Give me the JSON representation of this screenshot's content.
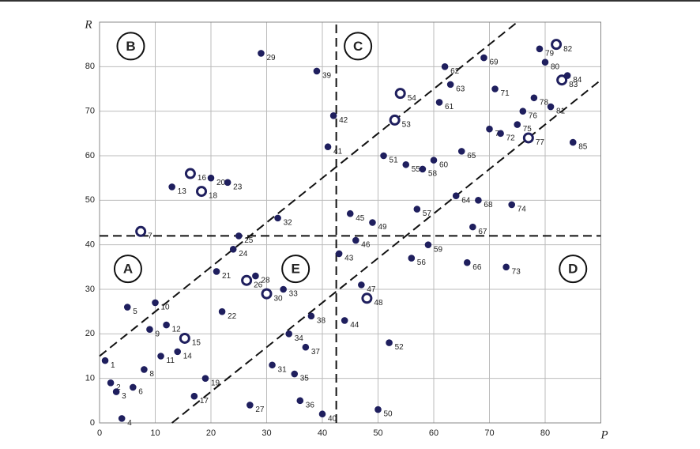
{
  "chart_data": {
    "type": "scatter",
    "x_label": "P",
    "y_label": "R",
    "xlim": [
      0,
      90
    ],
    "ylim": [
      0,
      90
    ],
    "xticks": [
      0,
      10,
      20,
      30,
      40,
      50,
      60,
      70,
      80
    ],
    "yticks": [
      0,
      10,
      20,
      30,
      40,
      50,
      60,
      70,
      80
    ],
    "grid": true,
    "color": "#1f1f5e",
    "point_labels": [
      "1",
      "2",
      "3",
      "4",
      "5",
      "6",
      "7",
      "8",
      "9",
      "10",
      "11",
      "12",
      "13",
      "14",
      "15",
      "16",
      "17",
      "18",
      "19",
      "20",
      "21",
      "22",
      "23",
      "24",
      "25",
      "26",
      "27",
      "28",
      "29",
      "30",
      "31",
      "32",
      "33",
      "34",
      "35",
      "36",
      "37",
      "38",
      "39",
      "40",
      "41",
      "42",
      "43",
      "44",
      "45",
      "46",
      "47",
      "48",
      "49",
      "50",
      "51",
      "52",
      "53",
      "54",
      "55",
      "56",
      "57",
      "58",
      "59",
      "60",
      "61",
      "62",
      "63",
      "64",
      "65",
      "66",
      "67",
      "68",
      "69",
      "70",
      "71",
      "72",
      "73",
      "74",
      "75",
      "76",
      "77",
      "78",
      "79",
      "80",
      "81",
      "82",
      "83",
      "84",
      "85"
    ],
    "x": [
      1,
      2,
      3,
      4,
      5,
      6,
      7.4,
      8,
      9,
      10,
      11,
      12,
      13,
      14,
      15.3,
      16.3,
      17,
      18.3,
      19,
      20,
      21,
      22,
      23,
      24,
      25,
      26.4,
      27,
      28,
      29,
      30,
      31,
      32,
      33,
      34,
      35,
      36,
      37,
      38,
      39,
      40,
      41,
      42,
      43,
      44,
      45,
      46,
      47,
      48,
      49,
      50,
      51,
      52,
      53,
      54,
      55,
      56,
      57,
      58,
      59,
      60,
      61,
      62,
      63,
      64,
      65,
      66,
      67,
      68,
      69,
      70,
      71,
      72,
      73,
      74,
      75,
      76,
      77,
      78,
      79,
      80,
      81,
      82,
      83,
      84,
      85
    ],
    "y": [
      14,
      9,
      7,
      1,
      26,
      8,
      43,
      12,
      21,
      27,
      15,
      22,
      53,
      16,
      19,
      56,
      6,
      52,
      10,
      55,
      34,
      25,
      54,
      39,
      42,
      32,
      4,
      33,
      83,
      29,
      13,
      46,
      30,
      20,
      11,
      5,
      17,
      24,
      79,
      2,
      62,
      69,
      38,
      23,
      47,
      41,
      31,
      28,
      45,
      3,
      60,
      18,
      68,
      74,
      58,
      37,
      48,
      57,
      40,
      59,
      72,
      80,
      76,
      51,
      61,
      36,
      44,
      50,
      82,
      66,
      75,
      65,
      35,
      49,
      67,
      70,
      64,
      73,
      84,
      81,
      71,
      85,
      77,
      78,
      63
    ],
    "hollow": [
      false,
      false,
      false,
      false,
      false,
      false,
      true,
      false,
      false,
      false,
      false,
      false,
      false,
      false,
      true,
      true,
      false,
      true,
      false,
      false,
      false,
      false,
      false,
      false,
      false,
      true,
      false,
      false,
      false,
      true,
      false,
      false,
      false,
      false,
      false,
      false,
      false,
      false,
      false,
      false,
      false,
      false,
      false,
      false,
      false,
      false,
      false,
      true,
      false,
      false,
      false,
      false,
      true,
      true,
      false,
      false,
      false,
      false,
      false,
      false,
      false,
      false,
      false,
      false,
      false,
      false,
      false,
      false,
      false,
      false,
      false,
      false,
      false,
      false,
      false,
      false,
      true,
      false,
      false,
      false,
      false,
      true,
      true,
      false,
      false
    ],
    "lines": [
      {
        "from": [
          42.5,
          0
        ],
        "to": [
          42.5,
          90
        ]
      },
      {
        "from": [
          0,
          42
        ],
        "to": [
          90,
          42
        ]
      },
      {
        "from": [
          0,
          15
        ],
        "to": [
          75,
          90
        ]
      },
      {
        "from": [
          13,
          0
        ],
        "to": [
          90,
          77
        ]
      }
    ],
    "regions": [
      {
        "label": "A",
        "x": 5.1,
        "y": 34.6
      },
      {
        "label": "B",
        "x": 5.6,
        "y": 84.6
      },
      {
        "label": "C",
        "x": 46.4,
        "y": 84.6
      },
      {
        "label": "D",
        "x": 85,
        "y": 34.6
      },
      {
        "label": "E",
        "x": 35.2,
        "y": 34.6
      }
    ]
  }
}
